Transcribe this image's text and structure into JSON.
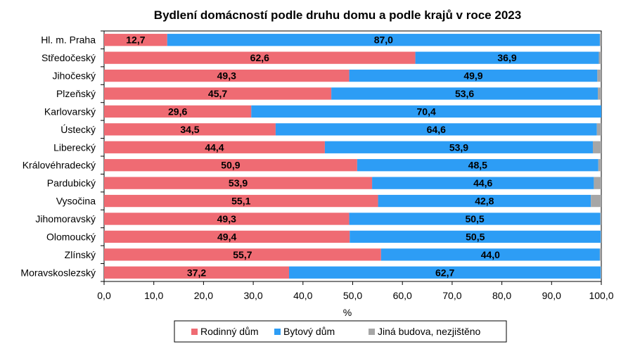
{
  "chart_data": {
    "type": "bar",
    "orientation": "horizontal",
    "stacked": true,
    "title": "Bydlení domácností podle druhu domu a podle krajů v roce 2023",
    "xlabel": "%",
    "ylabel": "",
    "xlim": [
      0,
      100
    ],
    "xticks": [
      "0,0",
      "10,0",
      "20,0",
      "30,0",
      "40,0",
      "50,0",
      "60,0",
      "70,0",
      "80,0",
      "90,0",
      "100,0"
    ],
    "grid": false,
    "legend_position": "bottom",
    "categories": [
      "Hl. m. Praha",
      "Středočeský",
      "Jihočeský",
      "Plzeňský",
      "Karlovarský",
      "Ústecký",
      "Liberecký",
      "Královéhradecký",
      "Pardubický",
      "Vysočina",
      "Jihomoravský",
      "Olomoucký",
      "Zlínský",
      "Moravskoslezský"
    ],
    "series": [
      {
        "name": "Rodinný dům",
        "color": "#ef6b73",
        "values": [
          12.7,
          62.6,
          49.3,
          45.7,
          29.6,
          34.5,
          44.4,
          50.9,
          53.9,
          55.1,
          49.3,
          49.4,
          55.7,
          37.2
        ],
        "labels": [
          "12,7",
          "62,6",
          "49,3",
          "45,7",
          "29,6",
          "34,5",
          "44,4",
          "50,9",
          "53,9",
          "55,1",
          "49,3",
          "49,4",
          "55,7",
          "37,2"
        ]
      },
      {
        "name": "Bytový dům",
        "color": "#2d9df5",
        "values": [
          87.0,
          36.9,
          49.9,
          53.6,
          70.4,
          64.6,
          53.9,
          48.5,
          44.6,
          42.8,
          50.5,
          50.5,
          44.0,
          62.7
        ],
        "labels": [
          "87,0",
          "36,9",
          "49,9",
          "53,6",
          "70,4",
          "64,6",
          "53,9",
          "48,5",
          "44,6",
          "42,8",
          "50,5",
          "50,5",
          "44,0",
          "62,7"
        ]
      },
      {
        "name": "Jiná budova, nezjištěno",
        "color": "#a6a6a6",
        "values": [
          0.3,
          0.5,
          0.8,
          0.7,
          0.0,
          0.9,
          1.7,
          0.6,
          1.5,
          2.1,
          0.2,
          0.1,
          0.3,
          0.1
        ],
        "labels": []
      }
    ]
  }
}
